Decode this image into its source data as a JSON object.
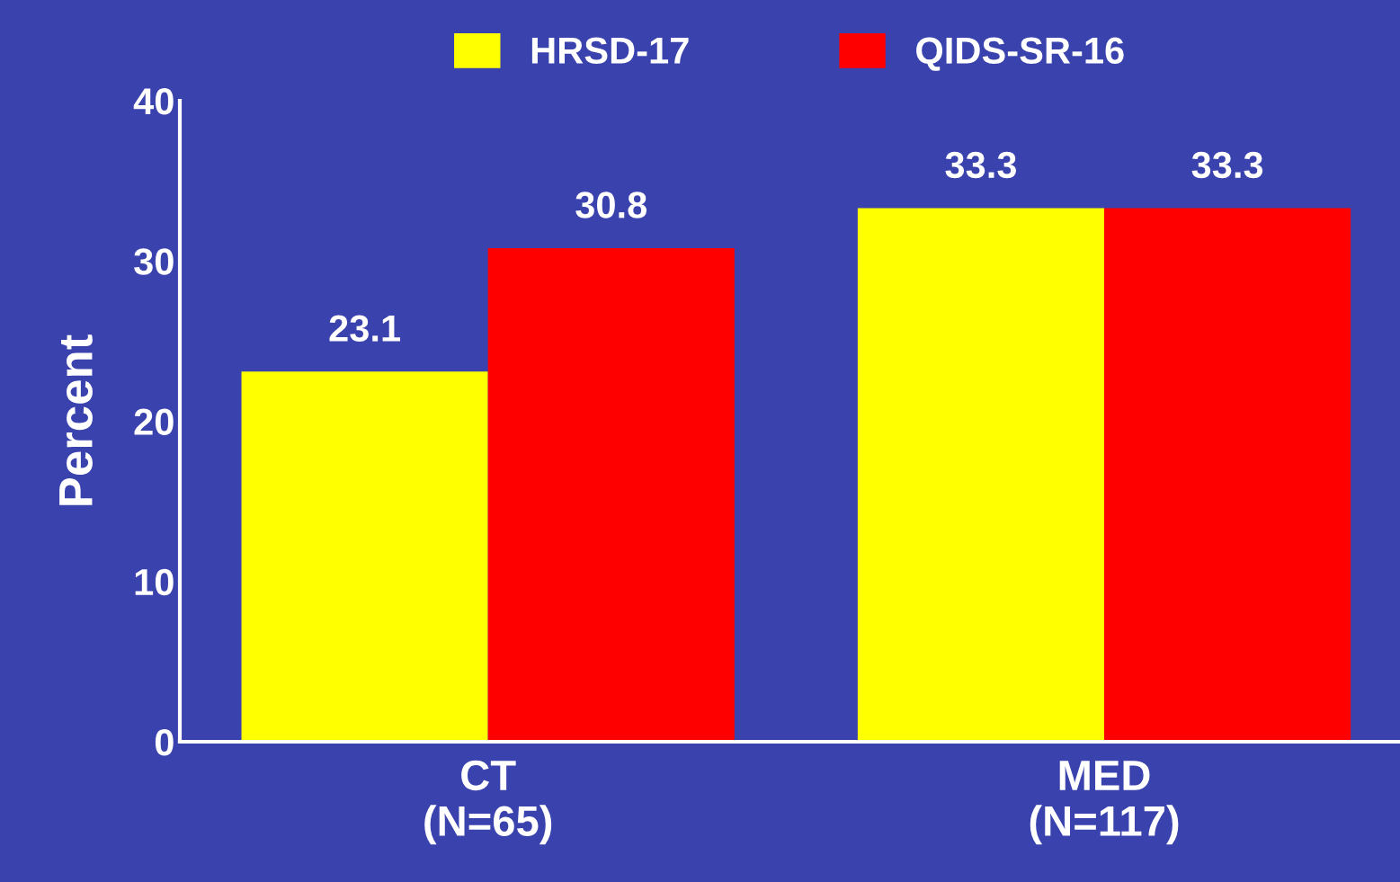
{
  "chart_data": {
    "type": "bar",
    "ylabel": "Percent",
    "categories": [
      "CT\n(N=65)",
      "MED\n(N=117)"
    ],
    "series": [
      {
        "name": "HRSD-17",
        "color": "#ffff00",
        "values": [
          23.1,
          33.3
        ]
      },
      {
        "name": "QIDS-SR-16",
        "color": "#ff0000",
        "values": [
          30.8,
          33.3
        ]
      }
    ],
    "ylim": [
      0,
      40
    ],
    "yticks": [
      0,
      10,
      20,
      30,
      40
    ],
    "grid": false,
    "legend": "top",
    "data_labels": true
  }
}
